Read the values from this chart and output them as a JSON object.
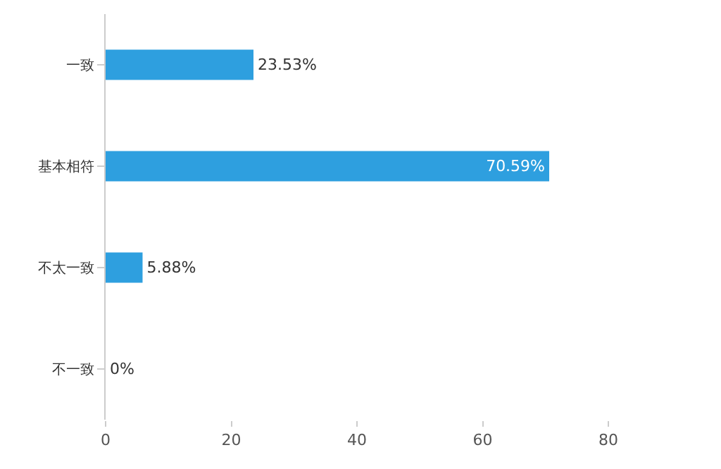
{
  "chart_data": {
    "type": "bar",
    "orientation": "horizontal",
    "categories": [
      "一致",
      "基本相符",
      "不太一致",
      "不一致"
    ],
    "values": [
      23.53,
      70.59,
      5.88,
      0
    ],
    "value_labels": [
      "23.53%",
      "70.59%",
      "5.88%",
      "0%"
    ],
    "color": "#2e9fdf",
    "xlim": [
      0,
      80
    ],
    "xticks": [
      0,
      20,
      40,
      60,
      80
    ],
    "grid": false
  }
}
